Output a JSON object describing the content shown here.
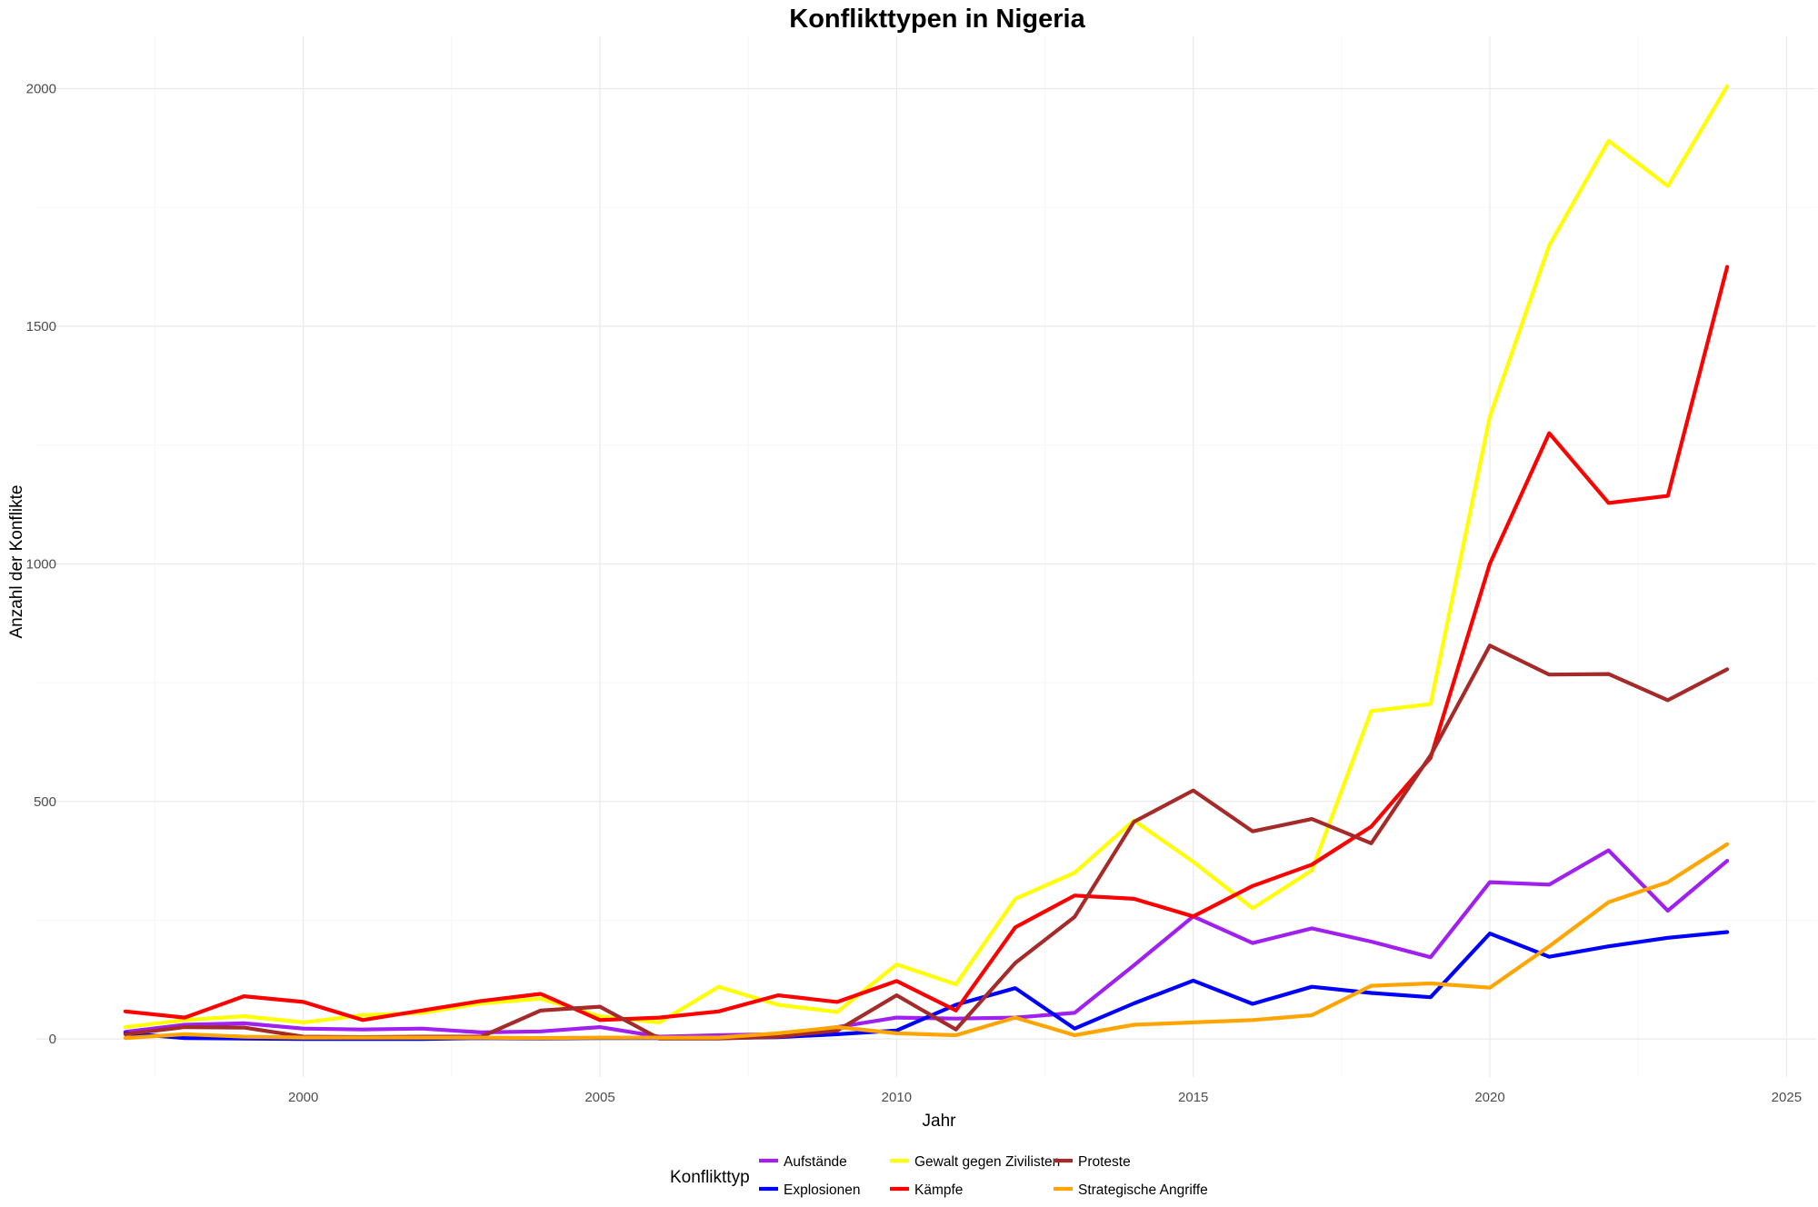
{
  "chart_data": {
    "type": "line",
    "title": "Konflikttypen in Nigeria",
    "xlabel": "Jahr",
    "ylabel": "Anzahl der Konflikte",
    "xlim": [
      1995.5,
      2025.5
    ],
    "ylim": [
      -80,
      2110
    ],
    "x_ticks": [
      2000,
      2005,
      2010,
      2015,
      2020,
      2025
    ],
    "y_ticks": [
      0,
      500,
      1000,
      1500,
      2000
    ],
    "x_tick_labels": [
      "2000",
      "2005",
      "2010",
      "2015",
      "2020",
      "2025"
    ],
    "y_tick_labels": [
      "0",
      "500",
      "1000",
      "1500",
      "2000"
    ],
    "grid": true,
    "legend": {
      "title": "Konflikttyp",
      "position": "bottom"
    },
    "x": [
      1997,
      1998,
      1999,
      2000,
      2001,
      2002,
      2003,
      2004,
      2005,
      2006,
      2007,
      2008,
      2009,
      2010,
      2011,
      2012,
      2013,
      2014,
      2015,
      2016,
      2017,
      2018,
      2019,
      2020,
      2021,
      2022,
      2023,
      2024
    ],
    "series": [
      {
        "name": "Aufstände",
        "color": "#a020f0",
        "values": [
          15,
          30,
          33,
          22,
          20,
          22,
          14,
          16,
          25,
          5,
          8,
          10,
          25,
          45,
          43,
          45,
          55,
          155,
          258,
          202,
          233,
          205,
          172,
          330,
          325,
          397,
          270,
          375
        ]
      },
      {
        "name": "Explosionen",
        "color": "#0000ff",
        "values": [
          12,
          2,
          1,
          0,
          0,
          0,
          2,
          1,
          2,
          2,
          2,
          4,
          10,
          18,
          72,
          107,
          22,
          75,
          123,
          74,
          110,
          97,
          88,
          222,
          173,
          195,
          213,
          225
        ]
      },
      {
        "name": "Gewalt gegen Zivilisten",
        "color": "#ffff00",
        "values": [
          25,
          40,
          48,
          35,
          50,
          55,
          75,
          85,
          48,
          35,
          110,
          72,
          57,
          157,
          115,
          295,
          350,
          460,
          373,
          275,
          355,
          690,
          705,
          1310,
          1670,
          1890,
          1795,
          2005
        ]
      },
      {
        "name": "Kämpfe",
        "color": "#ff0000",
        "values": [
          58,
          45,
          90,
          78,
          40,
          60,
          80,
          95,
          40,
          45,
          58,
          92,
          78,
          122,
          60,
          235,
          302,
          295,
          258,
          322,
          367,
          447,
          592,
          1000,
          1275,
          1128,
          1143,
          1625
        ]
      },
      {
        "name": "Proteste",
        "color": "#a52a2a",
        "values": [
          10,
          25,
          24,
          5,
          4,
          5,
          5,
          60,
          68,
          1,
          1,
          5,
          18,
          92,
          20,
          160,
          257,
          457,
          523,
          437,
          463,
          412,
          597,
          828,
          767,
          768,
          713,
          778
        ]
      },
      {
        "name": "Strategische Angriffe",
        "color": "#ffa500",
        "values": [
          2,
          10,
          5,
          3,
          3,
          3,
          3,
          2,
          3,
          3,
          3,
          12,
          25,
          12,
          8,
          45,
          8,
          30,
          35,
          40,
          50,
          112,
          117,
          108,
          195,
          288,
          330,
          410
        ]
      }
    ]
  }
}
